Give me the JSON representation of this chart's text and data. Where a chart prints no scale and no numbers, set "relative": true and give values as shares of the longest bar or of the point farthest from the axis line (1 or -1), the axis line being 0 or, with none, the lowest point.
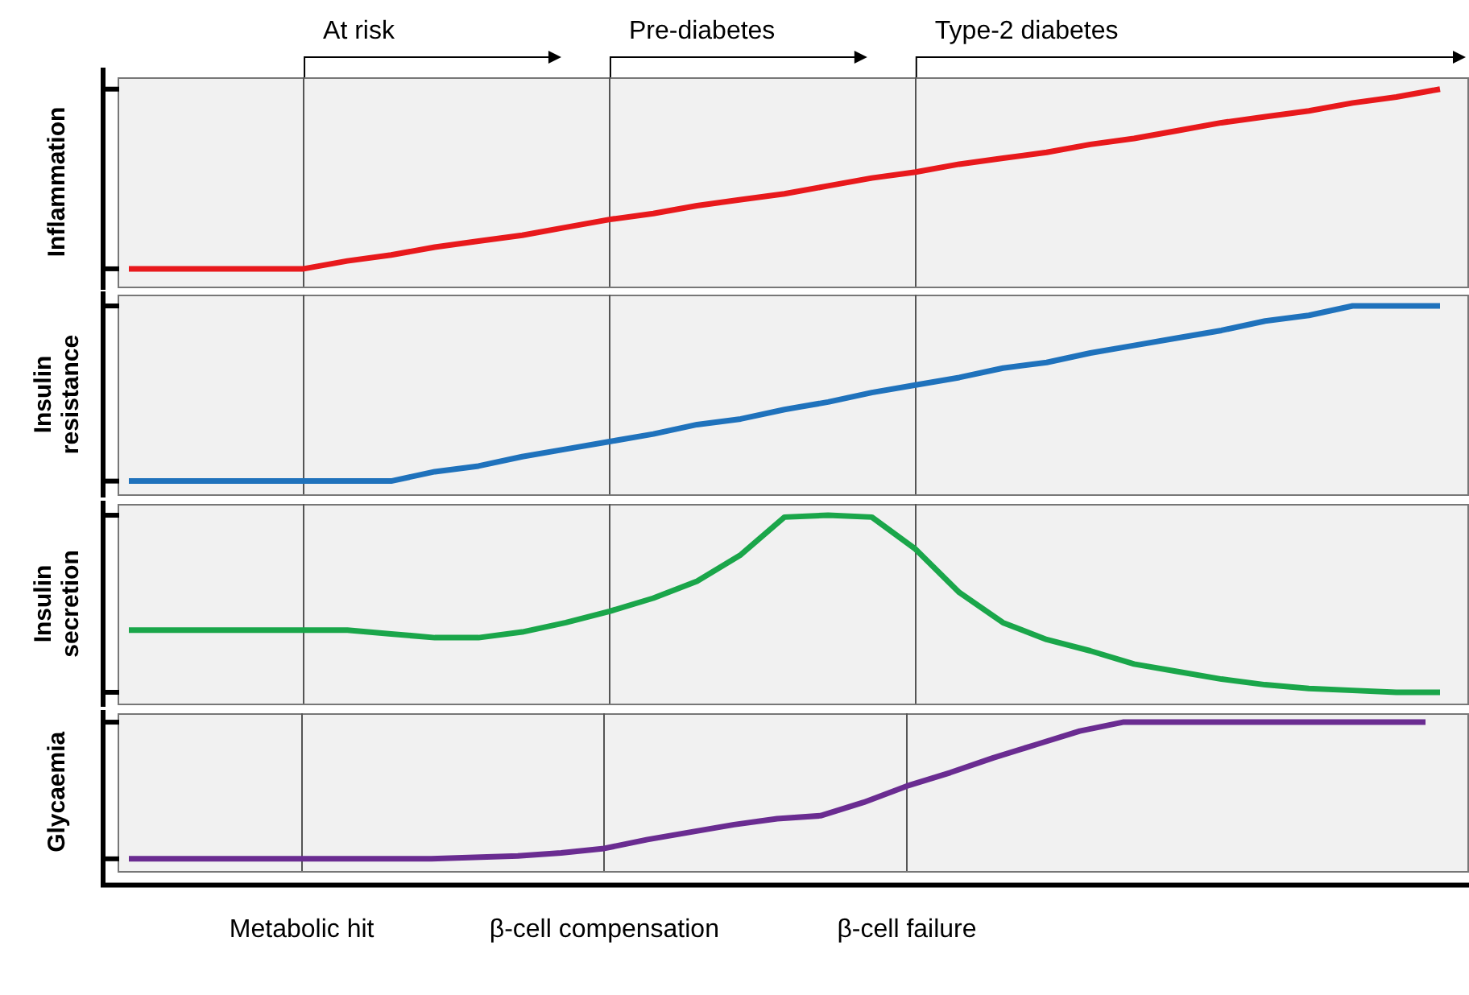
{
  "chart_data": [
    {
      "type": "line",
      "ylabel": "Inflammation",
      "relative": true,
      "grid": "x",
      "marker": "none",
      "tick_labels": false,
      "categories": [
        null,
        null,
        null,
        null,
        null,
        null,
        null,
        null,
        null,
        null,
        null,
        null,
        null,
        null,
        null,
        null,
        null,
        null,
        null,
        null,
        null,
        null,
        null,
        null,
        null,
        null,
        null,
        null,
        null,
        null,
        null
      ],
      "annotations": [
        "At risk",
        "Pre-diabetes",
        "Type-2 diabetes"
      ],
      "series": [
        {
          "color": "#e8191c",
          "values": [
            0.09,
            0.09,
            0.09,
            0.09,
            0.09,
            0.13,
            0.16,
            0.2,
            0.23,
            0.26,
            0.3,
            0.34,
            0.37,
            0.41,
            0.44,
            0.47,
            0.51,
            0.55,
            0.58,
            0.62,
            0.65,
            0.68,
            0.72,
            0.75,
            0.79,
            0.83,
            0.86,
            0.89,
            0.93,
            0.96,
            1
          ]
        }
      ]
    },
    {
      "type": "line",
      "ylabel": "Insulin resistance",
      "relative": true,
      "grid": "x",
      "marker": "none",
      "tick_labels": false,
      "categories": [
        null,
        null,
        null,
        null,
        null,
        null,
        null,
        null,
        null,
        null,
        null,
        null,
        null,
        null,
        null,
        null,
        null,
        null,
        null,
        null,
        null,
        null,
        null,
        null,
        null,
        null,
        null,
        null,
        null,
        null,
        null
      ],
      "series": [
        {
          "color": "#1f72bc",
          "values": [
            0.07,
            0.07,
            0.07,
            0.07,
            0.07,
            0.07,
            0.07,
            0.12,
            0.15,
            0.2,
            0.24,
            0.28,
            0.32,
            0.37,
            0.4,
            0.45,
            0.49,
            0.54,
            0.58,
            0.62,
            0.67,
            0.7,
            0.75,
            0.79,
            0.83,
            0.87,
            0.92,
            0.95,
            1,
            1,
            1
          ]
        }
      ]
    },
    {
      "type": "line",
      "ylabel": "Insulin secretion",
      "relative": true,
      "grid": "x",
      "marker": "none",
      "tick_labels": false,
      "categories": [
        null,
        null,
        null,
        null,
        null,
        null,
        null,
        null,
        null,
        null,
        null,
        null,
        null,
        null,
        null,
        null,
        null,
        null,
        null,
        null,
        null,
        null,
        null,
        null,
        null,
        null,
        null,
        null,
        null,
        null,
        null
      ],
      "series": [
        {
          "color": "#1aa64a",
          "values": [
            0.39,
            0.39,
            0.39,
            0.39,
            0.39,
            0.39,
            0.37,
            0.35,
            0.35,
            0.38,
            0.43,
            0.49,
            0.56,
            0.65,
            0.79,
            0.99,
            1,
            0.99,
            0.82,
            0.59,
            0.43,
            0.34,
            0.28,
            0.21,
            0.17,
            0.13,
            0.1,
            0.08,
            0.07,
            0.06,
            0.06
          ]
        }
      ]
    },
    {
      "type": "line",
      "ylabel": "Glycaemia",
      "relative": true,
      "grid": "x",
      "marker": "none",
      "tick_labels": "x",
      "categories": [
        null,
        null,
        null,
        null,
        "Metabolic hit",
        null,
        null,
        null,
        null,
        null,
        null,
        "β-cell compensation",
        null,
        null,
        null,
        null,
        null,
        null,
        "β-cell failure",
        null,
        null,
        null,
        null,
        null,
        null,
        null,
        null,
        null,
        null,
        null,
        null
      ],
      "series": [
        {
          "color": "#6a2c91",
          "values": [
            0.08,
            0.08,
            0.08,
            0.08,
            0.08,
            0.08,
            0.08,
            0.08,
            0.09,
            0.1,
            0.12,
            0.15,
            0.21,
            0.26,
            0.31,
            0.35,
            0.37,
            0.46,
            0.57,
            0.66,
            0.76,
            0.85,
            0.94,
            1,
            1,
            1,
            1,
            1,
            1,
            1,
            1
          ]
        }
      ]
    }
  ]
}
